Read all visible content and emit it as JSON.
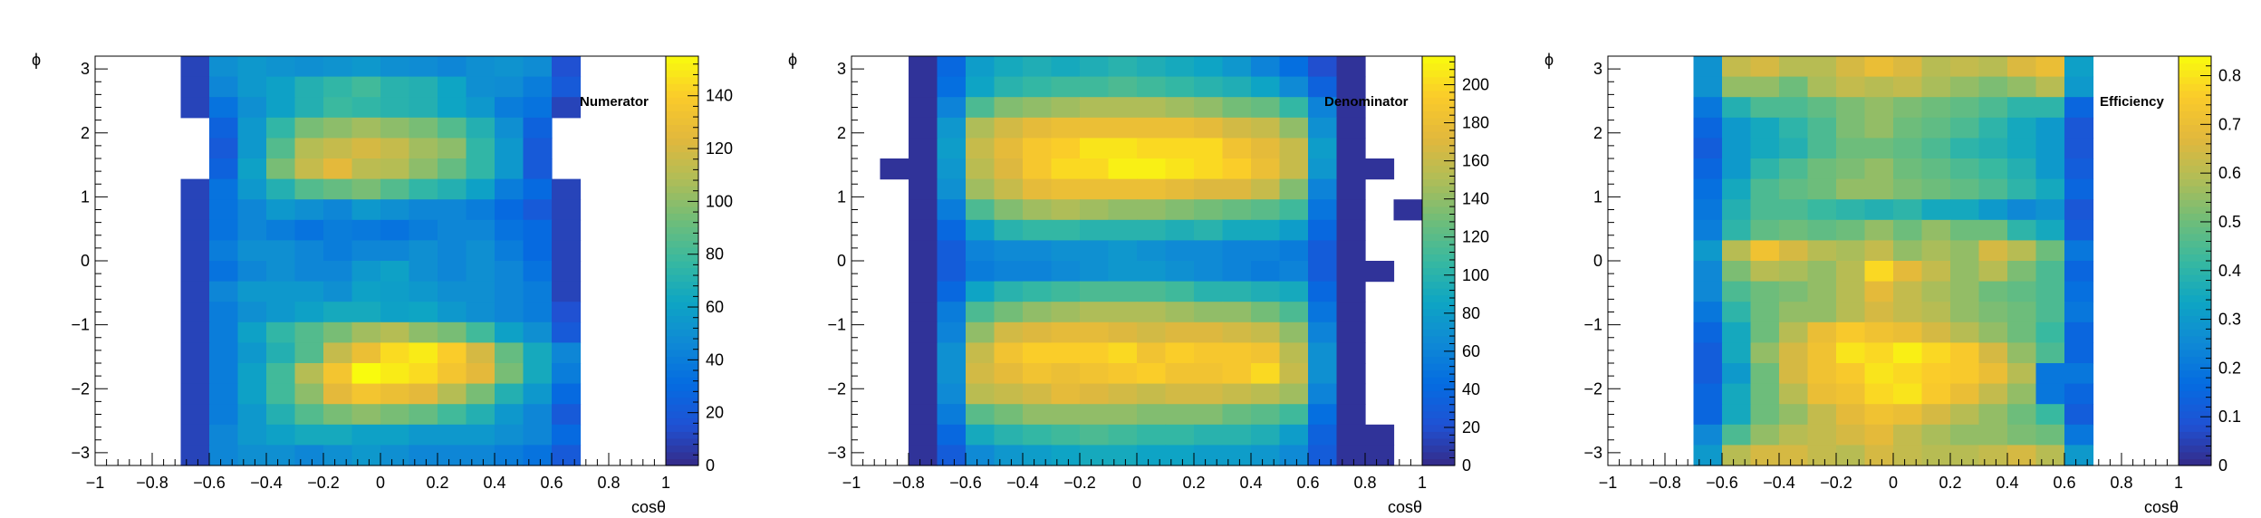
{
  "chart_data": [
    {
      "type": "heatmap",
      "label": "Numerator",
      "xlabel": "cosθ",
      "ylabel": "ϕ",
      "xlim": [
        -1,
        1
      ],
      "ylim": [
        -3.2,
        3.2
      ],
      "x_tick_labels": [
        "−1",
        "−0.8",
        "−0.6",
        "−0.4",
        "−0.2",
        "0",
        "0.2",
        "0.4",
        "0.6",
        "0.8",
        "1"
      ],
      "y_tick_labels": [
        "−3",
        "−2",
        "−1",
        "0",
        "1",
        "2",
        "3"
      ],
      "colorbar_range": [
        0,
        155
      ],
      "colorbar_tick_labels": [
        "0",
        "20",
        "40",
        "60",
        "80",
        "100",
        "120",
        "140"
      ],
      "x_bin_range": [
        -0.7,
        0.7
      ],
      "y_bin_range": [
        -3.2,
        3.2
      ],
      "values": [
        [
          10,
          50,
          55,
          52,
          50,
          52,
          55,
          50,
          48,
          45,
          50,
          52,
          48,
          15
        ],
        [
          10,
          45,
          55,
          60,
          70,
          75,
          80,
          72,
          70,
          62,
          50,
          48,
          40,
          20
        ],
        [
          10,
          35,
          50,
          60,
          70,
          78,
          75,
          72,
          70,
          62,
          55,
          40,
          35,
          10
        ],
        [
          -1,
          25,
          55,
          75,
          95,
          100,
          105,
          100,
          95,
          85,
          70,
          50,
          25,
          -1
        ],
        [
          -1,
          20,
          55,
          85,
          110,
          115,
          120,
          115,
          105,
          100,
          75,
          55,
          20,
          -1
        ],
        [
          -1,
          25,
          60,
          95,
          115,
          125,
          112,
          110,
          100,
          90,
          75,
          55,
          20,
          -1
        ],
        [
          10,
          35,
          55,
          70,
          85,
          90,
          95,
          85,
          75,
          70,
          60,
          40,
          30,
          10
        ],
        [
          10,
          35,
          45,
          55,
          50,
          45,
          55,
          50,
          45,
          45,
          40,
          30,
          20,
          10
        ],
        [
          10,
          35,
          45,
          40,
          35,
          40,
          38,
          35,
          40,
          45,
          45,
          35,
          30,
          10
        ],
        [
          10,
          40,
          50,
          50,
          45,
          40,
          45,
          45,
          50,
          45,
          50,
          40,
          30,
          10
        ],
        [
          10,
          35,
          45,
          50,
          45,
          45,
          55,
          60,
          50,
          45,
          50,
          45,
          35,
          10
        ],
        [
          10,
          45,
          55,
          55,
          55,
          50,
          60,
          58,
          55,
          50,
          50,
          45,
          40,
          10
        ],
        [
          10,
          40,
          50,
          55,
          60,
          65,
          65,
          60,
          62,
          55,
          50,
          45,
          40,
          15
        ],
        [
          10,
          40,
          60,
          75,
          85,
          95,
          105,
          110,
          100,
          95,
          80,
          60,
          50,
          20
        ],
        [
          10,
          40,
          55,
          70,
          85,
          115,
          130,
          145,
          150,
          140,
          120,
          90,
          65,
          45
        ],
        [
          10,
          40,
          60,
          80,
          110,
          135,
          155,
          150,
          145,
          135,
          125,
          95,
          65,
          40
        ],
        [
          10,
          40,
          60,
          80,
          100,
          125,
          135,
          130,
          125,
          110,
          95,
          70,
          55,
          30
        ],
        [
          10,
          40,
          55,
          70,
          85,
          95,
          100,
          95,
          90,
          80,
          70,
          55,
          45,
          20
        ],
        [
          10,
          45,
          55,
          60,
          65,
          65,
          60,
          60,
          55,
          55,
          55,
          50,
          45,
          30
        ],
        [
          10,
          45,
          50,
          50,
          45,
          50,
          55,
          50,
          45,
          45,
          45,
          40,
          35,
          20
        ]
      ]
    },
    {
      "type": "heatmap",
      "label": "Denominator",
      "xlabel": "cosθ",
      "ylabel": "ϕ",
      "xlim": [
        -1,
        1
      ],
      "ylim": [
        -3.2,
        3.2
      ],
      "x_tick_labels": [
        "−1",
        "−0.8",
        "−0.6",
        "−0.4",
        "−0.2",
        "0",
        "0.2",
        "0.4",
        "0.6",
        "0.8",
        "1"
      ],
      "y_tick_labels": [
        "−3",
        "−2",
        "−1",
        "0",
        "1",
        "2",
        "3"
      ],
      "colorbar_range": [
        0,
        215
      ],
      "colorbar_tick_labels": [
        "0",
        "20",
        "40",
        "60",
        "80",
        "100",
        "120",
        "140",
        "160",
        "180",
        "200"
      ],
      "x_bin_range": [
        -1,
        1
      ],
      "y_bin_range": [
        -3.2,
        3.2
      ],
      "values": [
        [
          -1,
          -1,
          5,
          40,
          80,
          90,
          95,
          90,
          95,
          100,
          95,
          90,
          85,
          75,
          60,
          45,
          20,
          5,
          -1,
          -1
        ],
        [
          -1,
          -1,
          5,
          45,
          85,
          100,
          105,
          110,
          110,
          115,
          110,
          105,
          100,
          95,
          85,
          65,
          35,
          5,
          -1,
          -1
        ],
        [
          -1,
          -1,
          5,
          60,
          115,
          135,
          140,
          145,
          150,
          150,
          150,
          145,
          140,
          130,
          125,
          105,
          60,
          5,
          -1,
          -1
        ],
        [
          -1,
          -1,
          5,
          75,
          150,
          165,
          175,
          180,
          180,
          180,
          180,
          180,
          175,
          165,
          160,
          140,
          70,
          5,
          -1,
          -1
        ],
        [
          -1,
          -1,
          5,
          80,
          160,
          175,
          190,
          195,
          205,
          205,
          200,
          200,
          200,
          185,
          175,
          160,
          80,
          5,
          -1,
          -1
        ],
        [
          -1,
          5,
          5,
          75,
          155,
          170,
          190,
          200,
          200,
          210,
          210,
          205,
          200,
          195,
          180,
          160,
          75,
          5,
          5,
          -1
        ],
        [
          -1,
          -1,
          5,
          70,
          145,
          160,
          175,
          180,
          180,
          180,
          180,
          175,
          170,
          170,
          160,
          135,
          60,
          5,
          -1,
          -1
        ],
        [
          -1,
          -1,
          5,
          55,
          115,
          135,
          145,
          150,
          145,
          140,
          140,
          135,
          130,
          125,
          120,
          110,
          50,
          5,
          -1,
          5
        ],
        [
          -1,
          -1,
          5,
          40,
          80,
          100,
          105,
          105,
          100,
          100,
          100,
          95,
          100,
          90,
          90,
          80,
          40,
          5,
          -1,
          -1
        ],
        [
          -1,
          -1,
          5,
          30,
          60,
          65,
          65,
          70,
          70,
          75,
          70,
          65,
          65,
          60,
          60,
          55,
          30,
          5,
          -1,
          -1
        ],
        [
          -1,
          -1,
          5,
          30,
          55,
          60,
          60,
          65,
          70,
          75,
          75,
          70,
          65,
          60,
          55,
          60,
          30,
          5,
          5,
          -1
        ],
        [
          -1,
          -1,
          5,
          40,
          85,
          100,
          105,
          110,
          115,
          115,
          115,
          110,
          100,
          100,
          95,
          90,
          40,
          5,
          -1,
          -1
        ],
        [
          -1,
          -1,
          5,
          55,
          115,
          130,
          140,
          145,
          150,
          150,
          150,
          145,
          140,
          140,
          130,
          115,
          50,
          5,
          -1,
          -1
        ],
        [
          -1,
          -1,
          5,
          60,
          140,
          165,
          170,
          175,
          175,
          170,
          165,
          170,
          170,
          165,
          160,
          140,
          60,
          5,
          -1,
          -1
        ],
        [
          -1,
          -1,
          5,
          70,
          160,
          185,
          195,
          195,
          195,
          200,
          185,
          195,
          190,
          190,
          185,
          155,
          70,
          5,
          -1,
          -1
        ],
        [
          -1,
          -1,
          5,
          70,
          165,
          175,
          185,
          180,
          185,
          190,
          195,
          185,
          185,
          190,
          200,
          160,
          70,
          5,
          -1,
          -1
        ],
        [
          -1,
          -1,
          5,
          65,
          155,
          160,
          165,
          175,
          170,
          165,
          160,
          165,
          165,
          160,
          155,
          145,
          60,
          5,
          -1,
          -1
        ],
        [
          -1,
          -1,
          5,
          55,
          120,
          130,
          140,
          140,
          140,
          140,
          135,
          135,
          135,
          125,
          120,
          110,
          45,
          5,
          -1,
          -1
        ],
        [
          -1,
          -1,
          5,
          40,
          90,
          100,
          105,
          110,
          115,
          110,
          105,
          105,
          100,
          100,
          95,
          80,
          35,
          5,
          5,
          -1
        ],
        [
          -1,
          -1,
          5,
          30,
          65,
          75,
          80,
          85,
          90,
          90,
          85,
          85,
          80,
          80,
          75,
          65,
          30,
          5,
          5,
          -1
        ]
      ]
    },
    {
      "type": "heatmap",
      "label": "Efficiency",
      "xlabel": "cosθ",
      "ylabel": "ϕ",
      "xlim": [
        -1,
        1
      ],
      "ylim": [
        -3.2,
        3.2
      ],
      "x_tick_labels": [
        "−1",
        "−0.8",
        "−0.6",
        "−0.4",
        "−0.2",
        "0",
        "0.2",
        "0.4",
        "0.6",
        "0.8",
        "1"
      ],
      "y_tick_labels": [
        "−3",
        "−2",
        "−1",
        "0",
        "1",
        "2",
        "3"
      ],
      "colorbar_range": [
        0,
        0.84
      ],
      "colorbar_tick_labels": [
        "0",
        "0.1",
        "0.2",
        "0.3",
        "0.4",
        "0.5",
        "0.6",
        "0.7",
        "0.8"
      ],
      "x_bin_range": [
        -0.7,
        0.7
      ],
      "y_bin_range": [
        -3.2,
        3.2
      ],
      "values": [
        [
          0.28,
          0.62,
          0.65,
          0.6,
          0.6,
          0.65,
          0.7,
          0.66,
          0.6,
          0.62,
          0.6,
          0.66,
          0.7,
          0.32
        ],
        [
          0.28,
          0.55,
          0.55,
          0.5,
          0.58,
          0.62,
          0.6,
          0.62,
          0.58,
          0.55,
          0.52,
          0.55,
          0.6,
          0.3
        ],
        [
          0.2,
          0.38,
          0.45,
          0.45,
          0.48,
          0.52,
          0.55,
          0.52,
          0.5,
          0.48,
          0.45,
          0.4,
          0.4,
          0.15
        ],
        [
          0.15,
          0.3,
          0.35,
          0.4,
          0.45,
          0.52,
          0.55,
          0.5,
          0.48,
          0.45,
          0.4,
          0.35,
          0.3,
          0.1
        ],
        [
          0.12,
          0.3,
          0.35,
          0.38,
          0.45,
          0.5,
          0.5,
          0.48,
          0.45,
          0.4,
          0.38,
          0.35,
          0.3,
          0.1
        ],
        [
          0.15,
          0.3,
          0.4,
          0.45,
          0.5,
          0.52,
          0.55,
          0.5,
          0.48,
          0.45,
          0.42,
          0.38,
          0.3,
          0.12
        ],
        [
          0.18,
          0.35,
          0.45,
          0.48,
          0.5,
          0.55,
          0.55,
          0.52,
          0.5,
          0.48,
          0.45,
          0.4,
          0.35,
          0.15
        ],
        [
          0.2,
          0.38,
          0.45,
          0.45,
          0.42,
          0.4,
          0.38,
          0.4,
          0.35,
          0.35,
          0.3,
          0.25,
          0.28,
          0.1
        ],
        [
          0.22,
          0.4,
          0.48,
          0.5,
          0.48,
          0.5,
          0.55,
          0.5,
          0.55,
          0.5,
          0.5,
          0.4,
          0.35,
          0.12
        ],
        [
          0.3,
          0.6,
          0.72,
          0.65,
          0.6,
          0.58,
          0.62,
          0.55,
          0.58,
          0.55,
          0.65,
          0.6,
          0.5,
          0.2
        ],
        [
          0.25,
          0.52,
          0.6,
          0.58,
          0.55,
          0.6,
          0.78,
          0.68,
          0.62,
          0.55,
          0.6,
          0.52,
          0.45,
          0.15
        ],
        [
          0.25,
          0.45,
          0.5,
          0.52,
          0.55,
          0.6,
          0.68,
          0.62,
          0.58,
          0.55,
          0.5,
          0.48,
          0.45,
          0.18
        ],
        [
          0.2,
          0.4,
          0.5,
          0.55,
          0.55,
          0.6,
          0.65,
          0.62,
          0.6,
          0.55,
          0.52,
          0.5,
          0.45,
          0.2
        ],
        [
          0.15,
          0.35,
          0.5,
          0.6,
          0.7,
          0.75,
          0.72,
          0.7,
          0.65,
          0.6,
          0.55,
          0.5,
          0.42,
          0.15
        ],
        [
          0.12,
          0.35,
          0.55,
          0.65,
          0.72,
          0.8,
          0.78,
          0.82,
          0.78,
          0.75,
          0.65,
          0.55,
          0.45,
          0.15
        ],
        [
          0.12,
          0.3,
          0.5,
          0.65,
          0.72,
          0.75,
          0.8,
          0.78,
          0.76,
          0.75,
          0.7,
          0.6,
          0.2,
          0.2
        ],
        [
          0.15,
          0.35,
          0.5,
          0.6,
          0.7,
          0.72,
          0.78,
          0.8,
          0.75,
          0.7,
          0.62,
          0.55,
          0.2,
          0.15
        ],
        [
          0.15,
          0.35,
          0.5,
          0.55,
          0.62,
          0.68,
          0.72,
          0.7,
          0.65,
          0.6,
          0.55,
          0.5,
          0.42,
          0.12
        ],
        [
          0.25,
          0.45,
          0.55,
          0.6,
          0.62,
          0.65,
          0.68,
          0.62,
          0.58,
          0.55,
          0.55,
          0.52,
          0.5,
          0.2
        ],
        [
          0.3,
          0.6,
          0.65,
          0.65,
          0.62,
          0.6,
          0.65,
          0.62,
          0.6,
          0.6,
          0.62,
          0.65,
          0.6,
          0.3
        ]
      ]
    }
  ]
}
